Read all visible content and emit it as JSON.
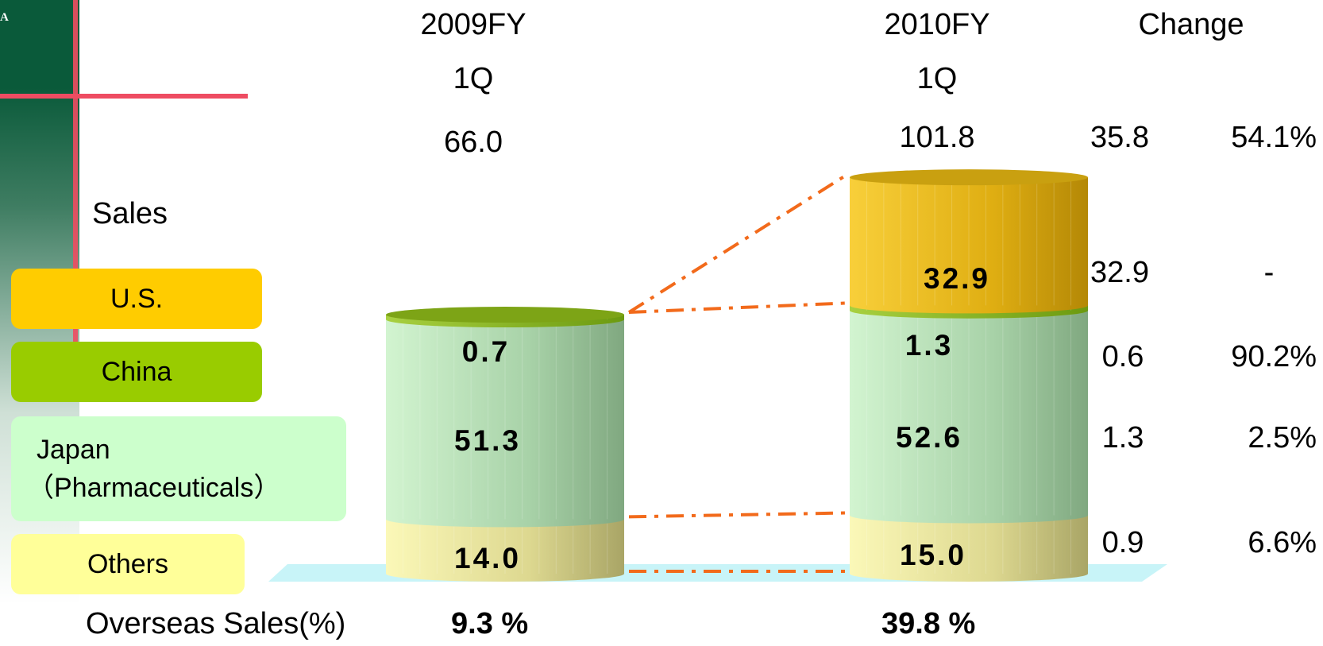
{
  "header": {
    "col_2009": {
      "line1": "2009FY",
      "line2": "1Q"
    },
    "col_2010": {
      "line1": "2010FY",
      "line2": "1Q"
    },
    "change": "Change"
  },
  "sidebar": {
    "logo_fragment": "A"
  },
  "row_labels": {
    "sales": "Sales",
    "us": "U.S.",
    "china": "China",
    "japan_line1": "Japan",
    "japan_line2": "（Pharmaceuticals）",
    "others": "Others",
    "overseas": "Overseas Sales(%)"
  },
  "chart_data": {
    "type": "bar",
    "stacked": true,
    "categories": [
      "2009FY 1Q",
      "2010FY 1Q"
    ],
    "totals": [
      "66.0",
      "101.8"
    ],
    "series": [
      {
        "name": "Others",
        "values": [
          14.0,
          15.0
        ],
        "labels": [
          "14.0",
          "15.0"
        ],
        "color": "#f2ef9c"
      },
      {
        "name": "Japan（Pharmaceuticals）",
        "values": [
          51.3,
          52.6
        ],
        "labels": [
          "51.3",
          "52.6"
        ],
        "color": "#b6dcb6"
      },
      {
        "name": "China",
        "values": [
          0.7,
          1.3
        ],
        "labels": [
          "0.7",
          "1.3"
        ],
        "color": "#8ab82a"
      },
      {
        "name": "U.S.",
        "values": [
          0,
          32.9
        ],
        "labels": [
          "",
          "32.9"
        ],
        "color": "#e6b410"
      }
    ],
    "overseas_pct": [
      "9.3 %",
      "39.8 %"
    ]
  },
  "change_table": {
    "total": {
      "abs": "35.8",
      "pct": "54.1%"
    },
    "us": {
      "abs": "32.9",
      "pct": "-"
    },
    "china": {
      "abs": "0.6",
      "pct": "90.2%"
    },
    "japan": {
      "abs": "1.3",
      "pct": "2.5%"
    },
    "others": {
      "abs": "0.9",
      "pct": "6.6%"
    }
  },
  "colors": {
    "us": "#ffcc00",
    "china": "#99cc00",
    "japan": "#ccffcc",
    "others": "#ffff99",
    "connector": "#f26a1b",
    "floor": "#c8f4f8"
  }
}
